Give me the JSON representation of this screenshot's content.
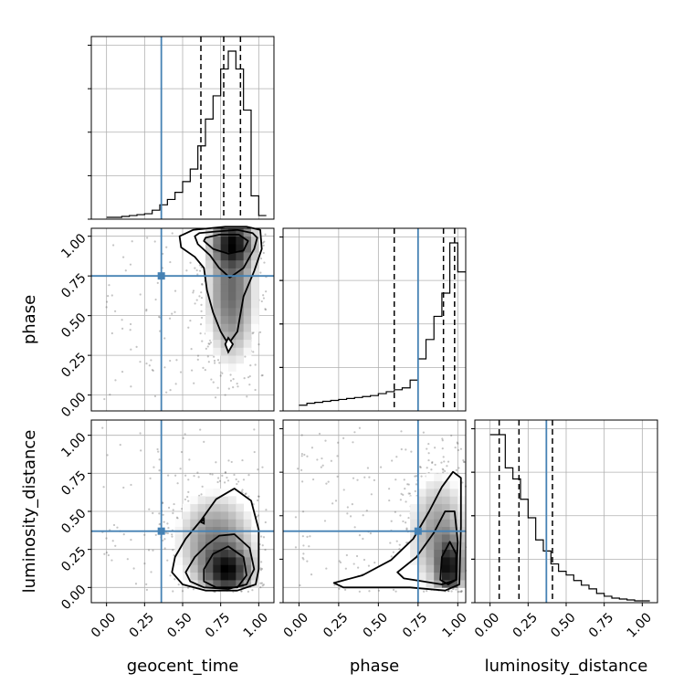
{
  "chart_data": {
    "type": "corner",
    "parameters": [
      "geocent_time",
      "phase",
      "luminosity_distance"
    ],
    "truths": {
      "geocent_time": 0.36,
      "phase": 0.75,
      "luminosity_distance": 0.37
    },
    "truth_color": "#4682b4",
    "ranges": {
      "geocent_time": [
        -0.1,
        1.1
      ],
      "phase": [
        -0.1,
        1.05
      ],
      "luminosity_distance": [
        -0.1,
        1.1
      ]
    },
    "ticks": [
      0.0,
      0.25,
      0.5,
      0.75,
      1.0
    ],
    "tick_labels": [
      "0.00",
      "0.25",
      "0.50",
      "0.75",
      "1.00"
    ],
    "grid": true,
    "histograms": {
      "geocent_time": {
        "quantiles": [
          0.62,
          0.77,
          0.88
        ],
        "bin_edges": [
          0.0,
          0.05,
          0.1,
          0.15,
          0.2,
          0.25,
          0.3,
          0.35,
          0.4,
          0.45,
          0.5,
          0.55,
          0.6,
          0.65,
          0.7,
          0.75,
          0.8,
          0.85,
          0.9,
          0.95,
          1.0,
          1.05
        ],
        "counts": [
          0,
          0,
          0.005,
          0.01,
          0.015,
          0.02,
          0.04,
          0.07,
          0.1,
          0.14,
          0.2,
          0.27,
          0.4,
          0.55,
          0.68,
          0.83,
          0.93,
          0.83,
          0.6,
          0.12,
          0.01
        ]
      },
      "phase": {
        "quantiles": [
          0.6,
          0.91,
          0.98
        ],
        "bin_edges": [
          0.0,
          0.05,
          0.1,
          0.15,
          0.2,
          0.25,
          0.3,
          0.35,
          0.4,
          0.45,
          0.5,
          0.55,
          0.6,
          0.65,
          0.7,
          0.75,
          0.8,
          0.85,
          0.9,
          0.95,
          1.0,
          1.05
        ],
        "counts": [
          0.02,
          0.03,
          0.035,
          0.04,
          0.045,
          0.05,
          0.055,
          0.06,
          0.065,
          0.07,
          0.08,
          0.09,
          0.1,
          0.11,
          0.15,
          0.26,
          0.36,
          0.48,
          0.6,
          0.86,
          0.71
        ]
      },
      "luminosity_distance": {
        "quantiles": [
          0.06,
          0.19,
          0.41
        ],
        "bin_edges": [
          0.0,
          0.05,
          0.1,
          0.15,
          0.2,
          0.25,
          0.3,
          0.35,
          0.4,
          0.45,
          0.5,
          0.55,
          0.6,
          0.65,
          0.7,
          0.75,
          0.8,
          0.85,
          0.9,
          0.95,
          1.0,
          1.05
        ],
        "counts": [
          0.9,
          0.9,
          0.72,
          0.66,
          0.55,
          0.45,
          0.33,
          0.27,
          0.2,
          0.16,
          0.14,
          0.11,
          0.085,
          0.065,
          0.04,
          0.025,
          0.015,
          0.01,
          0.005,
          0,
          0
        ]
      }
    },
    "panels_2d": [
      {
        "x": "geocent_time",
        "y": "phase",
        "modes": [
          {
            "x": 0.83,
            "y": 0.96,
            "sx": 0.09,
            "sy": 0.09,
            "w": 0.55
          },
          {
            "x": 0.82,
            "y": 0.65,
            "sx": 0.1,
            "sy": 0.28,
            "w": 0.45
          }
        ],
        "contours": [
          [
            [
              0.8,
              0.32
            ],
            [
              0.86,
              0.4
            ],
            [
              0.9,
              0.62
            ],
            [
              0.97,
              0.78
            ],
            [
              1.02,
              0.92
            ],
            [
              1.01,
              1.04
            ],
            [
              0.92,
              1.06
            ],
            [
              0.78,
              1.06
            ],
            [
              0.57,
              1.04
            ],
            [
              0.48,
              1.0
            ],
            [
              0.49,
              0.93
            ],
            [
              0.58,
              0.87
            ],
            [
              0.64,
              0.8
            ],
            [
              0.66,
              0.66
            ],
            [
              0.7,
              0.52
            ],
            [
              0.75,
              0.4
            ],
            [
              0.8,
              0.32
            ]
          ],
          [
            [
              0.58,
              1.0
            ],
            [
              0.6,
              0.95
            ],
            [
              0.68,
              0.88
            ],
            [
              0.74,
              0.8
            ],
            [
              0.81,
              0.74
            ],
            [
              0.9,
              0.8
            ],
            [
              0.97,
              0.92
            ],
            [
              0.99,
              0.99
            ],
            [
              0.96,
              1.02
            ],
            [
              0.86,
              1.04
            ],
            [
              0.72,
              1.03
            ],
            [
              0.61,
              1.02
            ],
            [
              0.58,
              1.0
            ]
          ],
          [
            [
              0.64,
              0.97
            ],
            [
              0.7,
              0.92
            ],
            [
              0.8,
              0.89
            ],
            [
              0.9,
              0.91
            ],
            [
              0.93,
              0.97
            ],
            [
              0.87,
              1.01
            ],
            [
              0.74,
              1.01
            ],
            [
              0.65,
              0.99
            ],
            [
              0.64,
              0.97
            ]
          ]
        ],
        "islands": [
          [
            [
              0.78,
              0.32
            ],
            [
              0.8,
              0.27
            ],
            [
              0.83,
              0.32
            ],
            [
              0.8,
              0.36
            ],
            [
              0.78,
              0.32
            ]
          ]
        ]
      },
      {
        "x": "geocent_time",
        "y": "luminosity_distance",
        "modes": [
          {
            "x": 0.8,
            "y": 0.1,
            "sx": 0.1,
            "sy": 0.1,
            "w": 0.6
          },
          {
            "x": 0.72,
            "y": 0.3,
            "sx": 0.16,
            "sy": 0.2,
            "w": 0.4
          }
        ],
        "contours": [
          [
            [
              0.43,
              0.1
            ],
            [
              0.45,
              0.2
            ],
            [
              0.52,
              0.32
            ],
            [
              0.62,
              0.44
            ],
            [
              0.72,
              0.58
            ],
            [
              0.84,
              0.65
            ],
            [
              0.95,
              0.57
            ],
            [
              1.0,
              0.38
            ],
            [
              1.0,
              0.12
            ],
            [
              0.98,
              0.02
            ],
            [
              0.86,
              -0.02
            ],
            [
              0.65,
              -0.02
            ],
            [
              0.5,
              0.02
            ],
            [
              0.43,
              0.1
            ]
          ],
          [
            [
              0.52,
              0.1
            ],
            [
              0.58,
              0.2
            ],
            [
              0.66,
              0.28
            ],
            [
              0.74,
              0.34
            ],
            [
              0.84,
              0.35
            ],
            [
              0.94,
              0.26
            ],
            [
              0.97,
              0.12
            ],
            [
              0.92,
              0.02
            ],
            [
              0.8,
              -0.01
            ],
            [
              0.64,
              0.0
            ],
            [
              0.55,
              0.04
            ],
            [
              0.52,
              0.1
            ]
          ],
          [
            [
              0.64,
              0.04
            ],
            [
              0.64,
              0.12
            ],
            [
              0.7,
              0.22
            ],
            [
              0.8,
              0.27
            ],
            [
              0.9,
              0.2
            ],
            [
              0.92,
              0.08
            ],
            [
              0.86,
              0.0
            ],
            [
              0.72,
              0.0
            ],
            [
              0.64,
              0.04
            ]
          ]
        ],
        "islands": [
          [
            [
              0.62,
              0.43
            ],
            [
              0.64,
              0.42
            ],
            [
              0.64,
              0.45
            ],
            [
              0.62,
              0.43
            ]
          ]
        ]
      },
      {
        "x": "phase",
        "y": "luminosity_distance",
        "modes": [
          {
            "x": 0.95,
            "y": 0.12,
            "sx": 0.05,
            "sy": 0.12,
            "w": 0.65
          },
          {
            "x": 0.88,
            "y": 0.35,
            "sx": 0.12,
            "sy": 0.25,
            "w": 0.35
          }
        ],
        "contours": [
          [
            [
              0.22,
              0.03
            ],
            [
              0.4,
              0.08
            ],
            [
              0.58,
              0.18
            ],
            [
              0.72,
              0.32
            ],
            [
              0.82,
              0.5
            ],
            [
              0.9,
              0.66
            ],
            [
              0.97,
              0.76
            ],
            [
              1.02,
              0.72
            ],
            [
              1.02,
              0.4
            ],
            [
              1.01,
              0.02
            ],
            [
              0.92,
              -0.02
            ],
            [
              0.7,
              0.0
            ],
            [
              0.45,
              0.0
            ],
            [
              0.28,
              0.0
            ],
            [
              0.22,
              0.03
            ]
          ],
          [
            [
              0.62,
              0.1
            ],
            [
              0.74,
              0.2
            ],
            [
              0.85,
              0.36
            ],
            [
              0.92,
              0.5
            ],
            [
              0.98,
              0.5
            ],
            [
              1.0,
              0.3
            ],
            [
              0.99,
              0.05
            ],
            [
              0.9,
              0.02
            ],
            [
              0.78,
              0.04
            ],
            [
              0.66,
              0.06
            ],
            [
              0.62,
              0.1
            ]
          ],
          [
            [
              0.89,
              0.05
            ],
            [
              0.9,
              0.2
            ],
            [
              0.95,
              0.3
            ],
            [
              0.99,
              0.22
            ],
            [
              0.99,
              0.05
            ],
            [
              0.94,
              0.02
            ],
            [
              0.89,
              0.05
            ]
          ]
        ],
        "islands": []
      }
    ]
  }
}
